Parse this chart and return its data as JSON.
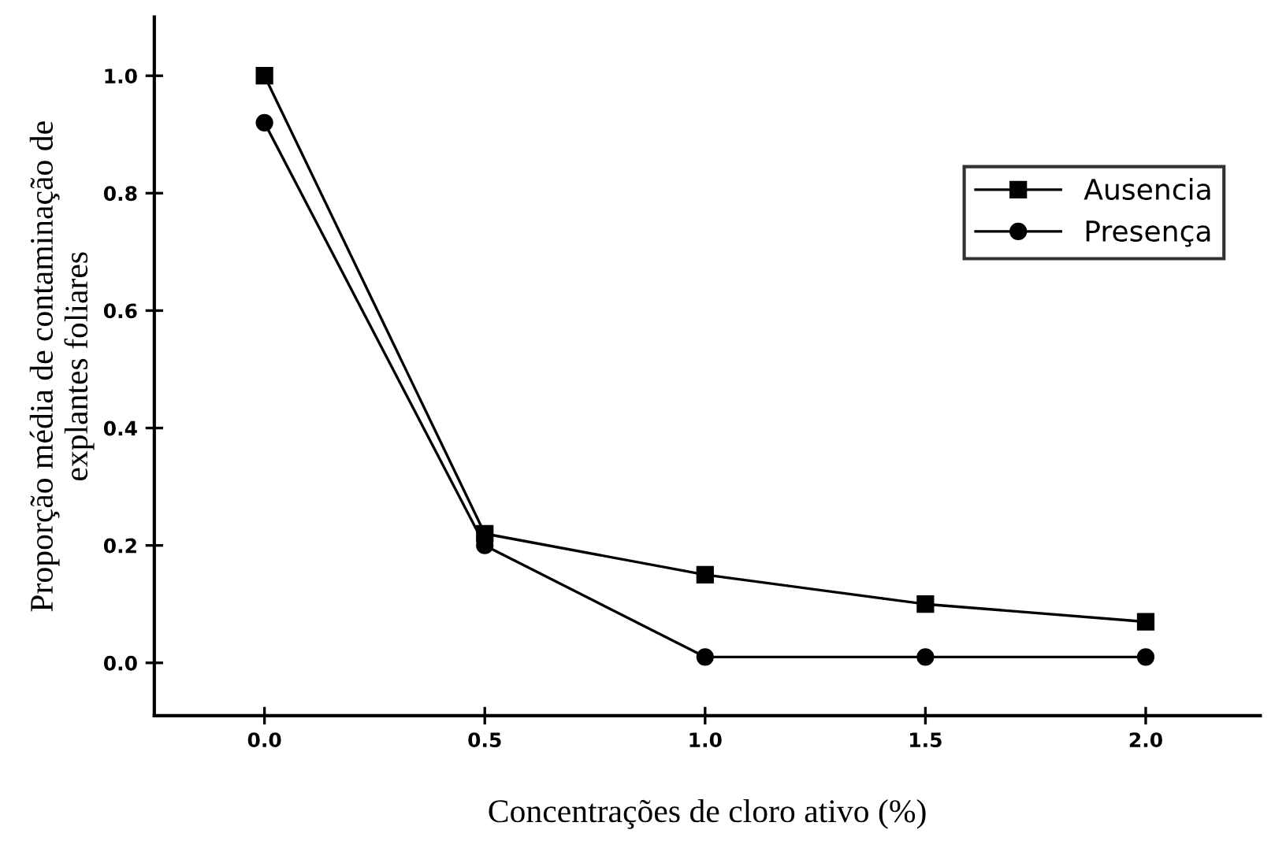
{
  "chart_data": {
    "type": "line",
    "xlabel": "Concentrações de cloro ativo (%)",
    "ylabel": "Proporção média de contaminação de\nexplantes foliares",
    "x": [
      0.0,
      0.5,
      1.0,
      1.5,
      2.0
    ],
    "series": [
      {
        "name": "Ausencia",
        "color": "#000000",
        "marker": "square",
        "values": [
          1.0,
          0.22,
          0.15,
          0.1,
          0.07
        ]
      },
      {
        "name": "Presença",
        "color": "#000000",
        "marker": "circle",
        "values": [
          0.92,
          0.2,
          0.01,
          0.01,
          0.01
        ]
      }
    ],
    "xlim": [
      -0.25,
      2.26
    ],
    "ylim": [
      -0.09,
      1.1
    ],
    "xticks": [
      {
        "value": 0.0,
        "label": "0.0"
      },
      0.5,
      {
        "value": 1.0,
        "label": "1.0"
      },
      1.5,
      {
        "value": 2.0,
        "label": "2.0"
      }
    ],
    "yticks": [
      {
        "value": 0.0,
        "label": "0.0"
      },
      0.2,
      0.4,
      0.6,
      0.8,
      {
        "value": 1.0,
        "label": "1.0"
      }
    ],
    "legend": "right",
    "grid": false,
    "line_style": "solid"
  }
}
